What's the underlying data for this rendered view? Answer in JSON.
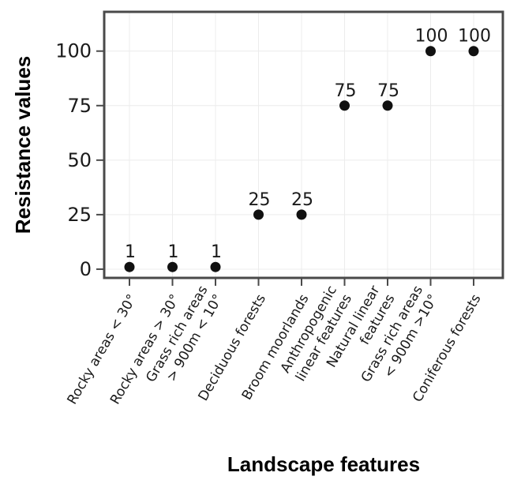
{
  "chart_data": {
    "type": "scatter",
    "title": "",
    "xlabel": "Landscape features",
    "ylabel": "Resistance values",
    "categories": [
      [
        "Rocky areas < 30°"
      ],
      [
        "Rocky areas > 30°"
      ],
      [
        "Grass rich areas",
        "> 900m < 10°"
      ],
      [
        "Deciduous forests"
      ],
      [
        "Broom moorlands"
      ],
      [
        "Anthropogenic",
        "linear features"
      ],
      [
        "Natural linear",
        "features"
      ],
      [
        "Grass rich areas",
        "< 900m >10°"
      ],
      [
        "Coniferous forests"
      ]
    ],
    "values": [
      1,
      1,
      1,
      25,
      25,
      75,
      75,
      100,
      100
    ],
    "data_labels": [
      "1",
      "1",
      "1",
      "25",
      "25",
      "75",
      "75",
      "100",
      "100"
    ],
    "yticks": [
      0,
      25,
      50,
      75,
      100
    ],
    "ytick_labels": [
      "0",
      "25",
      "50",
      "75",
      "100"
    ],
    "ylim": [
      -4,
      118
    ],
    "grid": true,
    "colors": {
      "point": "#111111",
      "frame": "#4a4a4a",
      "grid": "#ececec"
    }
  }
}
